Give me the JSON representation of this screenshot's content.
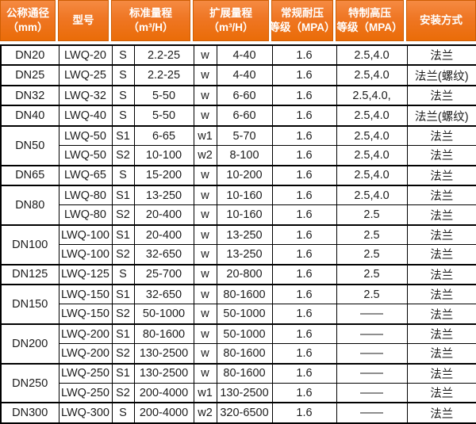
{
  "colors": {
    "header_orange_top": "#f58a42",
    "header_orange_mid": "#ef7623",
    "header_orange_bottom": "#ea6c08",
    "header_cell_border": "#ce5e04",
    "header_text": "#ffffff",
    "body_border": "#000000",
    "body_text": "#1c1c1c",
    "background": "#ffffff"
  },
  "header": {
    "cells": [
      {
        "name": "nominal-diameter",
        "lines": [
          "公称通径",
          "（mm）"
        ]
      },
      {
        "name": "model",
        "lines": [
          "型号"
        ]
      },
      {
        "name": "standard-range",
        "lines": [
          "标准量程",
          "（m³/H）"
        ]
      },
      {
        "name": "extended-range",
        "lines": [
          "扩展量程",
          "（m³/H）"
        ]
      },
      {
        "name": "regular-pressure-rating",
        "lines": [
          "常规耐压",
          "等级（MPA）"
        ]
      },
      {
        "name": "special-high-pressure-rating",
        "lines": [
          "特制高压",
          "等级（MPA）"
        ]
      },
      {
        "name": "installation-method",
        "lines": [
          "安装方式"
        ]
      }
    ]
  },
  "rows": [
    {
      "group_start": true,
      "cells": [
        {
          "text": "DN20",
          "rowspan": 1
        },
        "LWQ-20",
        "S",
        "2.2-25",
        "w",
        "4-40",
        "1.6",
        "2.5,4.0",
        "法兰"
      ]
    },
    {
      "group_start": true,
      "cells": [
        {
          "text": "DN25",
          "rowspan": 1
        },
        "LWQ-25",
        "S",
        "2.2-25",
        "w",
        "4-40",
        "1.6",
        "2.5,4.0",
        "法兰(螺纹)"
      ]
    },
    {
      "group_start": true,
      "cells": [
        {
          "text": "DN32",
          "rowspan": 1
        },
        "LWQ-32",
        "S",
        "5-50",
        "w",
        "6-60",
        "1.6",
        "2.5,4.0,",
        "法兰"
      ]
    },
    {
      "group_start": true,
      "cells": [
        {
          "text": "DN40",
          "rowspan": 1
        },
        "LWQ-40",
        "S",
        "5-50",
        "w",
        "6-60",
        "1.6",
        "2.5,4.0",
        "法兰(螺纹)"
      ]
    },
    {
      "group_start": true,
      "cells": [
        {
          "text": "DN50",
          "rowspan": 2
        },
        "LWQ-50",
        "S1",
        "6-65",
        "w1",
        "5-70",
        "1.6",
        "2.5,4.0",
        "法兰"
      ]
    },
    {
      "group_start": false,
      "cells": [
        "LWQ-50",
        "S2",
        "10-100",
        "w2",
        "8-100",
        "1.6",
        "2.5,4.0",
        "法兰"
      ]
    },
    {
      "group_start": true,
      "cells": [
        {
          "text": "DN65",
          "rowspan": 1
        },
        "LWQ-65",
        "S",
        "15-200",
        "w",
        "10-200",
        "1.6",
        "2.5,4.0",
        "法兰"
      ]
    },
    {
      "group_start": true,
      "cells": [
        {
          "text": "DN80",
          "rowspan": 2
        },
        "LWQ-80",
        "S1",
        "13-250",
        "w",
        "10-160",
        "1.6",
        "2.5,4.0",
        "法兰"
      ]
    },
    {
      "group_start": false,
      "cells": [
        "LWQ-80",
        "S2",
        "20-400",
        "w",
        "10-160",
        "1.6",
        "2.5",
        "法兰"
      ]
    },
    {
      "group_start": true,
      "cells": [
        {
          "text": "DN100",
          "rowspan": 2
        },
        "LWQ-100",
        "S1",
        "20-400",
        "w",
        "13-250",
        "1.6",
        "2.5",
        "法兰"
      ]
    },
    {
      "group_start": false,
      "cells": [
        "LWQ-100",
        "S2",
        "32-650",
        "w",
        "13-250",
        "1.6",
        "2.5",
        "法兰"
      ]
    },
    {
      "group_start": true,
      "cells": [
        {
          "text": "DN125",
          "rowspan": 1
        },
        "LWQ-125",
        "S",
        "25-700",
        "w",
        "20-800",
        "1.6",
        "2.5",
        "法兰"
      ]
    },
    {
      "group_start": true,
      "cells": [
        {
          "text": "DN150",
          "rowspan": 2
        },
        "LWQ-150",
        "S1",
        "32-650",
        "w",
        "80-1600",
        "1.6",
        "2.5",
        "法兰"
      ]
    },
    {
      "group_start": false,
      "cells": [
        "LWQ-150",
        "S2",
        "50-1000",
        "w",
        "50-1000",
        "1.6",
        "——",
        "法兰"
      ]
    },
    {
      "group_start": true,
      "cells": [
        {
          "text": "DN200",
          "rowspan": 2
        },
        "LWQ-200",
        "S1",
        "80-1600",
        "w",
        "50-1000",
        "1.6",
        "——",
        "法兰"
      ]
    },
    {
      "group_start": false,
      "cells": [
        "LWQ-200",
        "S2",
        "130-2500",
        "w",
        "80-1600",
        "1.6",
        "——",
        "法兰"
      ]
    },
    {
      "group_start": true,
      "cells": [
        {
          "text": "DN250",
          "rowspan": 2
        },
        "LWQ-250",
        "S1",
        "130-2500",
        "w",
        "80-1600",
        "1.6",
        "——",
        "法兰"
      ]
    },
    {
      "group_start": false,
      "cells": [
        "LWQ-250",
        "S2",
        "200-4000",
        "w1",
        "130-2500",
        "1.6",
        "——",
        "法兰"
      ]
    },
    {
      "group_start": true,
      "cells": [
        {
          "text": "DN300",
          "rowspan": 1
        },
        "LWQ-300",
        "S",
        "200-4000",
        "w2",
        "320-6500",
        "1.6",
        "——",
        "法兰"
      ]
    }
  ]
}
